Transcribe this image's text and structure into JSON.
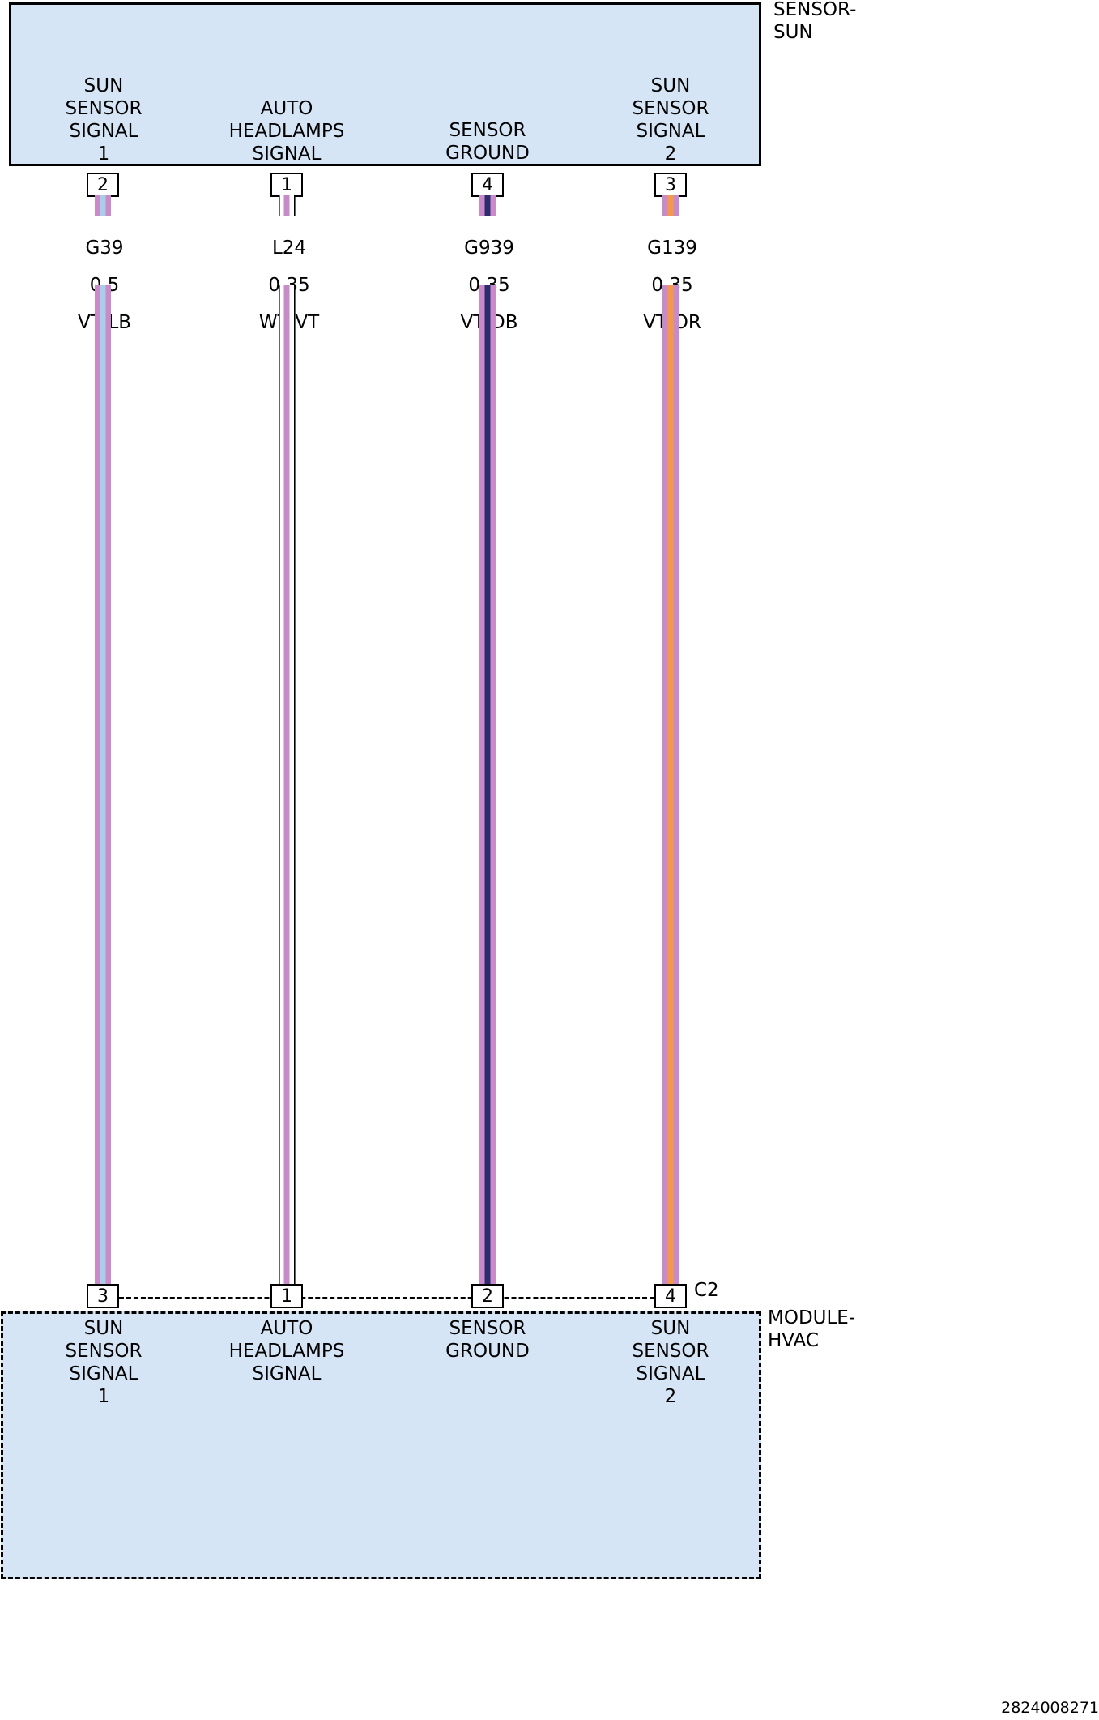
{
  "components": {
    "top": {
      "name": "SENSOR-\nSUN"
    },
    "bottom": {
      "name": "MODULE-\nHVAC",
      "connector": "C2"
    }
  },
  "circuits": [
    {
      "top_function": "SUN\nSENSOR\nSIGNAL\n1",
      "top_pin": "2",
      "circuit": "G39",
      "gauge": "0.5",
      "color_code": "VT/LB",
      "base_color": "#c98ac9",
      "stripe_color": "#aacde8",
      "bottom_pin": "3",
      "bottom_function": "SUN\nSENSOR\nSIGNAL\n1"
    },
    {
      "top_function": "AUTO\nHEADLAMPS\nSIGNAL",
      "top_pin": "1",
      "circuit": "L24",
      "gauge": "0.35",
      "color_code": "WT/VT",
      "base_color": "#ffffff",
      "stripe_color": "#c98ac9",
      "bottom_pin": "1",
      "bottom_function": "AUTO\nHEADLAMPS\nSIGNAL"
    },
    {
      "top_function": "SENSOR\nGROUND",
      "top_pin": "4",
      "circuit": "G939",
      "gauge": "0.35",
      "color_code": "VT/DB",
      "base_color": "#c98ac9",
      "stripe_color": "#2e2a6e",
      "bottom_pin": "2",
      "bottom_function": "SENSOR\nGROUND"
    },
    {
      "top_function": "SUN\nSENSOR\nSIGNAL\n2",
      "top_pin": "3",
      "circuit": "G139",
      "gauge": "0.35",
      "color_code": "VT/OR",
      "base_color": "#c98ac9",
      "stripe_color": "#f2994a",
      "bottom_pin": "4",
      "bottom_function": "SUN\nSENSOR\nSIGNAL\n2"
    }
  ],
  "diagram_code": "2824008271"
}
